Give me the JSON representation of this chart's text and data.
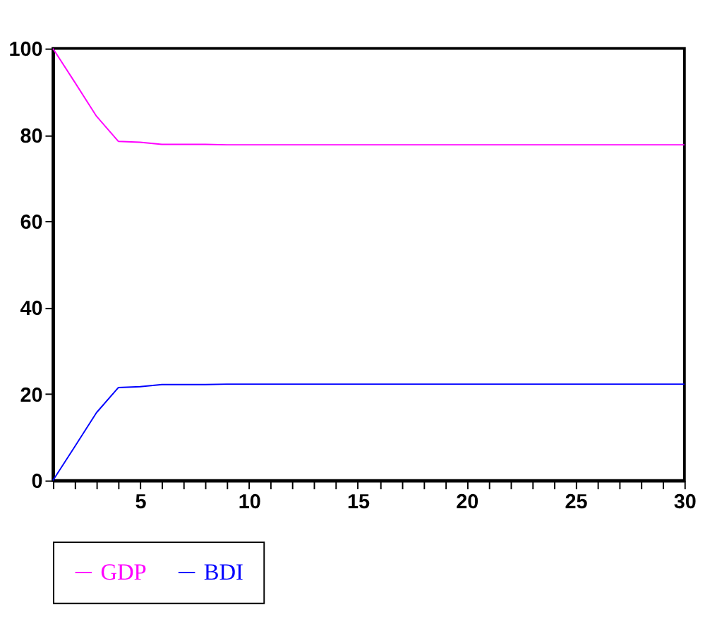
{
  "chart_data": {
    "type": "line",
    "x": [
      1,
      2,
      3,
      4,
      5,
      6,
      7,
      8,
      9,
      10,
      11,
      12,
      13,
      14,
      15,
      16,
      17,
      18,
      19,
      20,
      21,
      22,
      23,
      24,
      25,
      26,
      27,
      28,
      29,
      30
    ],
    "series": [
      {
        "name": "GDP",
        "color": "#ff00ff",
        "values": [
          100,
          92.2,
          84.3,
          78.5,
          78.3,
          77.8,
          77.8,
          77.8,
          77.7,
          77.7,
          77.7,
          77.7,
          77.7,
          77.7,
          77.7,
          77.7,
          77.7,
          77.7,
          77.7,
          77.7,
          77.7,
          77.7,
          77.7,
          77.7,
          77.7,
          77.7,
          77.7,
          77.7,
          77.7,
          77.7
        ]
      },
      {
        "name": "BDI",
        "color": "#0000ff",
        "values": [
          0,
          7.8,
          15.7,
          21.5,
          21.7,
          22.2,
          22.2,
          22.2,
          22.3,
          22.3,
          22.3,
          22.3,
          22.3,
          22.3,
          22.3,
          22.3,
          22.3,
          22.3,
          22.3,
          22.3,
          22.3,
          22.3,
          22.3,
          22.3,
          22.3,
          22.3,
          22.3,
          22.3,
          22.3,
          22.3
        ]
      }
    ],
    "xlim": [
      1,
      30
    ],
    "xticks": [
      {
        "value": 1,
        "label": null
      },
      {
        "value": 2,
        "label": null
      },
      {
        "value": 3,
        "label": null
      },
      {
        "value": 4,
        "label": null
      },
      5,
      {
        "value": 6,
        "label": null
      },
      {
        "value": 7,
        "label": null
      },
      {
        "value": 8,
        "label": null
      },
      {
        "value": 9,
        "label": null
      },
      10,
      {
        "value": 11,
        "label": null
      },
      {
        "value": 12,
        "label": null
      },
      {
        "value": 13,
        "label": null
      },
      {
        "value": 14,
        "label": null
      },
      15,
      {
        "value": 16,
        "label": null
      },
      {
        "value": 17,
        "label": null
      },
      {
        "value": 18,
        "label": null
      },
      {
        "value": 19,
        "label": null
      },
      20,
      {
        "value": 21,
        "label": null
      },
      {
        "value": 22,
        "label": null
      },
      {
        "value": 23,
        "label": null
      },
      {
        "value": 24,
        "label": null
      },
      25,
      {
        "value": 26,
        "label": null
      },
      {
        "value": 27,
        "label": null
      },
      {
        "value": 28,
        "label": null
      },
      {
        "value": 29,
        "label": null
      },
      30
    ],
    "ylim": [
      0,
      100
    ],
    "yticks": [
      0,
      20,
      40,
      60,
      80,
      100
    ],
    "grid": false,
    "legend": "bottom",
    "marker": "none",
    "line_style": "solid"
  }
}
